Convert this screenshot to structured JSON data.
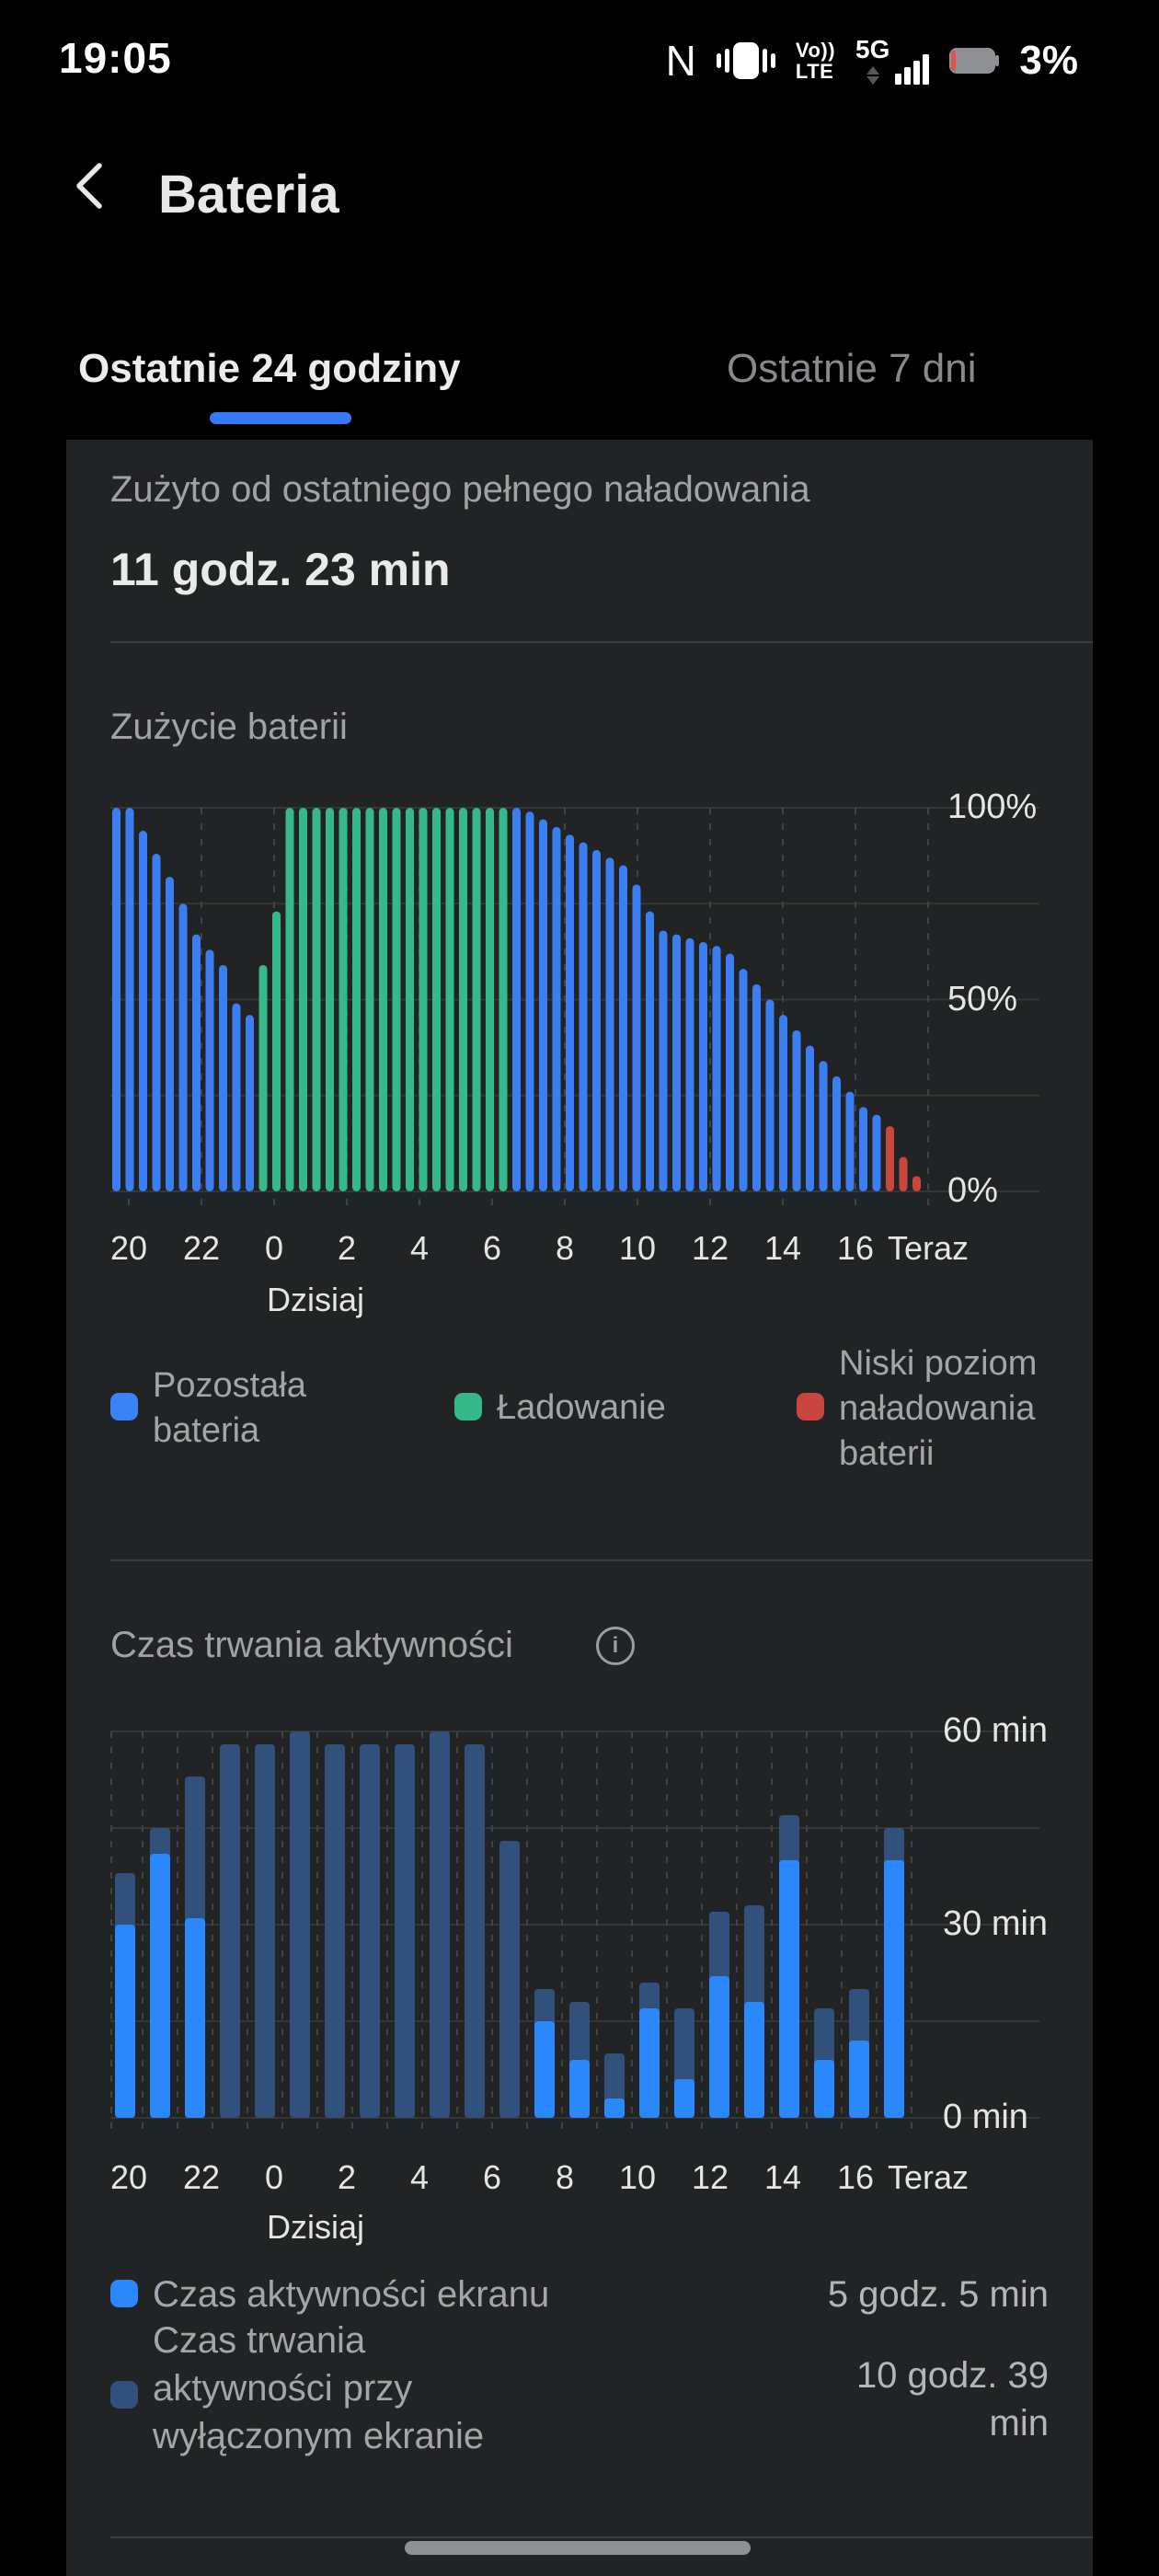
{
  "status_bar": {
    "time": "19:05",
    "nfc_glyph": "N",
    "volte_line1": "Vo))",
    "volte_line2": "LTE",
    "network_label": "5G",
    "battery_percent": "3%"
  },
  "header": {
    "title": "Bateria"
  },
  "tabs": {
    "active": "Ostatnie 24 godziny",
    "inactive": "Ostatnie 7 dni"
  },
  "summary": {
    "label": "Zużyto od ostatniego pełnego naładowania",
    "value": "11 godz. 23 min"
  },
  "battery_section": {
    "title": "Zużycie baterii",
    "legend": [
      {
        "name": "remaining",
        "label": "Pozostała\nbateria",
        "color": "#3b82f7"
      },
      {
        "name": "charging",
        "label": "Ładowanie",
        "color": "#35b98a"
      },
      {
        "name": "low",
        "label": "Niski poziom\nnaładowania\nbaterii",
        "color": "#c8463f"
      }
    ]
  },
  "activity_section": {
    "title": "Czas trwania aktywności",
    "legend": [
      {
        "name": "screen-on",
        "label": "Czas aktywności ekranu",
        "value": "5 godz. 5 min",
        "color": "#2b87fc"
      },
      {
        "name": "screen-off",
        "label": "Czas trwania\naktywności przy\nwyłączonym ekranie",
        "value": "10 godz. 39 min",
        "color": "#31507c"
      }
    ]
  },
  "chart_data": [
    {
      "type": "bar",
      "title": "Zużycie baterii",
      "ylabel": "battery %",
      "ylim": [
        0,
        100
      ],
      "grid_step": 25,
      "y_tick_labels": [
        "100%",
        "50%",
        "0%"
      ],
      "x_tick_labels": [
        "20",
        "22",
        "0",
        "2",
        "4",
        "6",
        "8",
        "10",
        "12",
        "14",
        "16",
        "Teraz"
      ],
      "x_sub_label": "Dzisiaj",
      "x_sub_index": 2,
      "colors": {
        "remaining": "#3b7ef2",
        "charging": "#35b98a",
        "low": "#c8463f"
      },
      "values": [
        100,
        100,
        94,
        88,
        82,
        75,
        67,
        63,
        59,
        49,
        46,
        59,
        73,
        100,
        100,
        100,
        100,
        100,
        100,
        100,
        100,
        100,
        100,
        100,
        100,
        100,
        100,
        100,
        100,
        100,
        100,
        99,
        97,
        95,
        93,
        91,
        89,
        87,
        85,
        80,
        73,
        68,
        67,
        66,
        65,
        64,
        62,
        58,
        54,
        50,
        46,
        42,
        38,
        34,
        30,
        26,
        22,
        20,
        17,
        9,
        4
      ],
      "segments": [
        {
          "kind": "remaining",
          "count": 11
        },
        {
          "kind": "charging",
          "count": 19
        },
        {
          "kind": "remaining",
          "count": 28
        },
        {
          "kind": "low",
          "count": 3
        }
      ]
    },
    {
      "type": "stacked-bar",
      "title": "Czas trwania aktywności",
      "ylabel": "minutes per hour",
      "ylim": [
        0,
        60
      ],
      "grid_step": 15,
      "y_tick_labels": [
        "60 min",
        "30 min",
        "0 min"
      ],
      "x_tick_labels": [
        "20",
        "22",
        "0",
        "2",
        "4",
        "6",
        "8",
        "10",
        "12",
        "14",
        "16",
        "Teraz"
      ],
      "x_sub_label": "Dzisiaj",
      "x_sub_index": 2,
      "colors": {
        "screen_on": "#2b87fc",
        "screen_off": "#31507c"
      },
      "series": [
        {
          "name": "screen_on",
          "values": [
            30,
            41,
            31,
            0,
            0,
            0,
            0,
            0,
            0,
            0,
            0,
            0,
            15,
            9,
            3,
            17,
            6,
            22,
            18,
            40,
            9,
            12,
            40
          ]
        },
        {
          "name": "screen_off",
          "values": [
            8,
            4,
            22,
            58,
            58,
            60,
            58,
            58,
            58,
            60,
            58,
            43,
            5,
            9,
            7,
            4,
            11,
            10,
            15,
            7,
            8,
            8,
            5
          ]
        }
      ]
    }
  ]
}
